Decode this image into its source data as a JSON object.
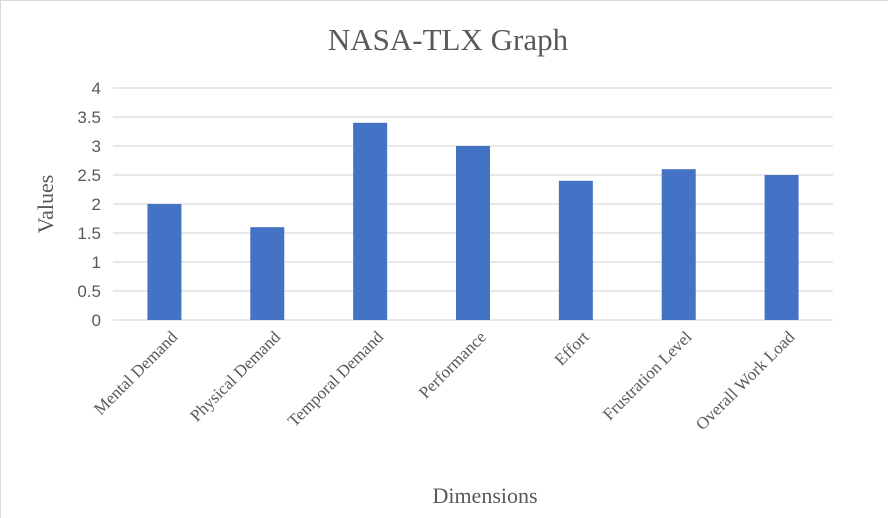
{
  "chart_data": {
    "type": "bar",
    "title": "NASA-TLX Graph",
    "xlabel": "Dimensions",
    "ylabel": "Values",
    "categories": [
      "Mental Demand",
      "Physical Demand",
      "Temporal Demand",
      "Performance",
      "Effort",
      "Frustration Level",
      "Overall Work Load"
    ],
    "values": [
      2.0,
      1.6,
      3.4,
      3.0,
      2.4,
      2.6,
      2.5
    ],
    "ylim": [
      0,
      4
    ],
    "yticks": [
      "0",
      "0.5",
      "1",
      "1.5",
      "2",
      "2.5",
      "3",
      "3.5",
      "4"
    ],
    "grid": true,
    "legend": "none",
    "bar_color": "#4472C4",
    "grid_color": "#d9d9d9"
  }
}
